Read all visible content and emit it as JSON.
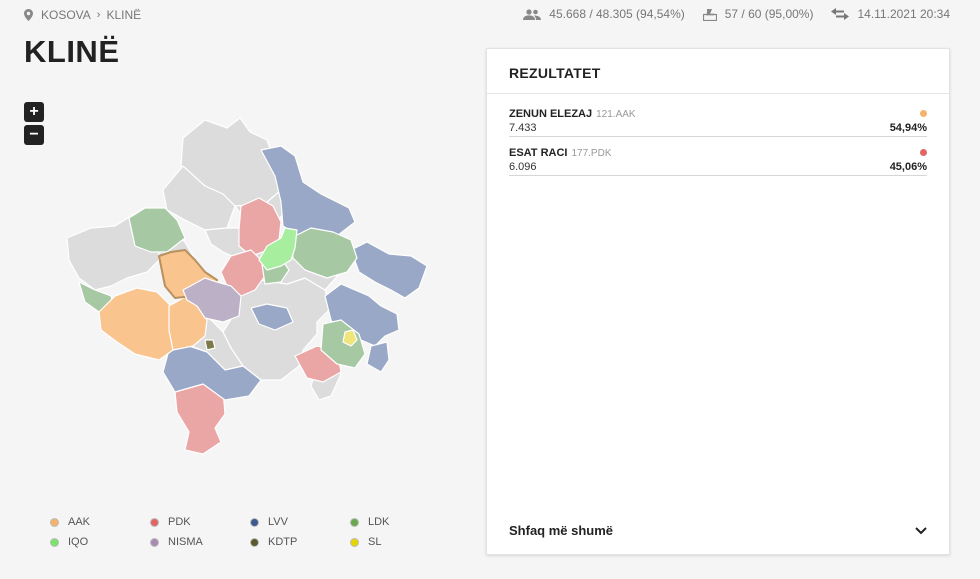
{
  "breadcrumb": {
    "country": "KOSOVA",
    "municipality": "KLINË"
  },
  "stats": {
    "voters": "45.668 / 48.305 (94,54%)",
    "stations": "57 / 60 (95,00%)",
    "updated": "14.11.2021 20:34"
  },
  "page": {
    "title": "KLINË"
  },
  "zoom": {
    "in_label": "+",
    "out_label": "−"
  },
  "panel": {
    "title": "REZULTATET",
    "results": [
      {
        "name": "ZENUN ELEZAJ",
        "party": "121.AAK",
        "votes": "7.433",
        "percent": "54,94%",
        "color": "#f6b26b"
      },
      {
        "name": "ESAT RACI",
        "party": "177.PDK",
        "votes": "6.096",
        "percent": "45,06%",
        "color": "#e06666"
      }
    ],
    "show_more": "Shfaq më shumë"
  },
  "legend": [
    {
      "label": "AAK",
      "color": "#f6b26b"
    },
    {
      "label": "PDK",
      "color": "#e06666"
    },
    {
      "label": "LVV",
      "color": "#3c5a8c"
    },
    {
      "label": "LDK",
      "color": "#6aa84f"
    },
    {
      "label": "IQO",
      "color": "#7be36b"
    },
    {
      "label": "NISMA",
      "color": "#a78bb0"
    },
    {
      "label": "KDTP",
      "color": "#5b5a2e"
    },
    {
      "label": "SL",
      "color": "#e8d400"
    }
  ]
}
